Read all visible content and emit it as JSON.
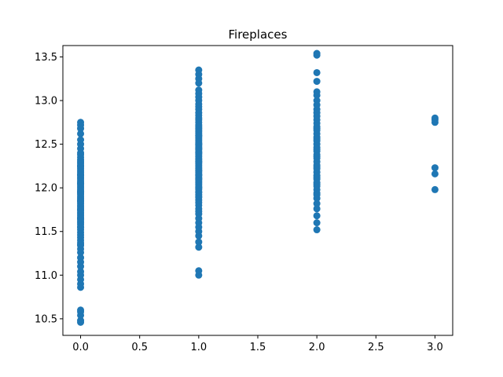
{
  "chart_data": {
    "type": "scatter",
    "title": "Fireplaces",
    "xlabel": "",
    "ylabel": "",
    "xlim": [
      -0.15,
      3.15
    ],
    "ylim": [
      10.31,
      13.63
    ],
    "xticks": [
      0.0,
      0.5,
      1.0,
      1.5,
      2.0,
      2.5,
      3.0
    ],
    "xtick_labels": [
      "0.0",
      "0.5",
      "1.0",
      "1.5",
      "2.0",
      "2.5",
      "3.0"
    ],
    "yticks": [
      10.5,
      11.0,
      11.5,
      12.0,
      12.5,
      13.0,
      13.5
    ],
    "ytick_labels": [
      "10.5",
      "11.0",
      "11.5",
      "12.0",
      "12.5",
      "13.0",
      "13.5"
    ],
    "grid": false,
    "legend": "none",
    "marker_color": "#1f77b4",
    "series": [
      {
        "x": [
          0,
          0,
          0,
          0,
          0,
          0,
          0,
          0,
          0,
          0,
          0,
          0,
          0,
          0,
          0,
          0,
          0,
          0,
          0,
          0,
          0,
          0,
          0,
          0,
          0,
          0,
          0,
          0,
          0,
          0,
          0,
          0,
          0,
          0,
          0,
          0,
          0,
          0,
          0,
          0,
          0,
          0,
          0,
          0,
          0,
          0,
          0,
          0,
          0,
          0,
          0,
          0,
          0,
          0,
          0,
          0,
          0,
          0,
          0,
          0,
          0,
          0,
          0,
          0,
          0,
          0,
          0,
          0,
          0,
          0,
          0,
          0,
          0,
          0,
          0,
          0,
          0,
          0,
          0,
          0,
          1,
          1,
          1,
          1,
          1,
          1,
          1,
          1,
          1,
          1,
          1,
          1,
          1,
          1,
          1,
          1,
          1,
          1,
          1,
          1,
          1,
          1,
          1,
          1,
          1,
          1,
          1,
          1,
          1,
          1,
          1,
          1,
          1,
          1,
          1,
          1,
          1,
          1,
          1,
          1,
          1,
          1,
          1,
          1,
          1,
          1,
          1,
          1,
          1,
          1,
          1,
          1,
          1,
          1,
          1,
          1,
          1,
          1,
          1,
          1,
          1,
          1,
          1,
          1,
          1,
          1,
          1,
          1,
          1,
          1,
          1,
          1,
          1,
          1,
          1,
          1,
          1,
          1,
          1,
          1,
          1,
          1,
          1,
          2,
          2,
          2,
          2,
          2,
          2,
          2,
          2,
          2,
          2,
          2,
          2,
          2,
          2,
          2,
          2,
          2,
          2,
          2,
          2,
          2,
          2,
          2,
          2,
          2,
          2,
          2,
          2,
          2,
          2,
          2,
          2,
          2,
          2,
          2,
          2,
          2,
          2,
          2,
          2,
          2,
          2,
          2,
          2,
          2,
          2,
          2,
          3,
          3,
          3,
          3,
          3,
          3
        ],
        "y": [
          10.46,
          10.48,
          10.54,
          10.58,
          10.6,
          10.86,
          10.9,
          10.95,
          11.0,
          11.04,
          11.1,
          11.15,
          11.2,
          11.26,
          11.3,
          11.34,
          11.37,
          11.4,
          11.43,
          11.46,
          11.49,
          11.52,
          11.55,
          11.58,
          11.6,
          11.62,
          11.64,
          11.66,
          11.68,
          11.7,
          11.72,
          11.74,
          11.76,
          11.78,
          11.8,
          11.82,
          11.84,
          11.86,
          11.88,
          11.9,
          11.92,
          11.94,
          11.96,
          11.98,
          12.0,
          12.02,
          12.04,
          12.06,
          12.08,
          12.1,
          12.12,
          12.14,
          12.16,
          12.18,
          12.2,
          12.22,
          12.24,
          12.26,
          12.28,
          12.3,
          12.32,
          12.35,
          12.38,
          12.4,
          12.45,
          12.5,
          12.55,
          12.62,
          12.68,
          12.72,
          12.75,
          11.35,
          11.65,
          11.85,
          12.05,
          12.25,
          11.55,
          11.75,
          11.95,
          12.15,
          11.0,
          11.05,
          11.32,
          11.38,
          11.45,
          11.5,
          11.55,
          11.6,
          11.65,
          11.7,
          11.73,
          11.76,
          11.8,
          11.83,
          11.86,
          11.89,
          11.92,
          11.95,
          11.98,
          12.0,
          12.02,
          12.04,
          12.06,
          12.08,
          12.1,
          12.12,
          12.14,
          12.16,
          12.18,
          12.2,
          12.22,
          12.24,
          12.26,
          12.28,
          12.3,
          12.32,
          12.34,
          12.36,
          12.38,
          12.4,
          12.42,
          12.44,
          12.46,
          12.48,
          12.5,
          12.52,
          12.54,
          12.56,
          12.58,
          12.6,
          12.62,
          12.64,
          12.66,
          12.68,
          12.7,
          12.72,
          12.75,
          12.78,
          12.8,
          12.83,
          12.86,
          12.9,
          12.93,
          12.96,
          13.0,
          13.04,
          13.08,
          13.12,
          13.2,
          13.25,
          13.3,
          13.35,
          11.9,
          12.0,
          12.1,
          12.2,
          12.3,
          12.4,
          12.5,
          12.6,
          11.95,
          12.15,
          12.45,
          11.52,
          11.6,
          11.68,
          11.76,
          11.82,
          11.88,
          11.94,
          11.98,
          12.02,
          12.06,
          12.1,
          12.14,
          12.18,
          12.22,
          12.26,
          12.3,
          12.34,
          12.38,
          12.42,
          12.46,
          12.5,
          12.54,
          12.58,
          12.62,
          12.66,
          12.7,
          12.74,
          12.78,
          12.82,
          12.86,
          12.9,
          12.95,
          13.0,
          13.06,
          13.1,
          13.22,
          13.32,
          13.52,
          13.54,
          11.92,
          12.04,
          12.12,
          12.24,
          12.36,
          12.44,
          12.56,
          12.68,
          11.98,
          12.16,
          12.23,
          12.75,
          12.78,
          12.8
        ]
      }
    ]
  }
}
